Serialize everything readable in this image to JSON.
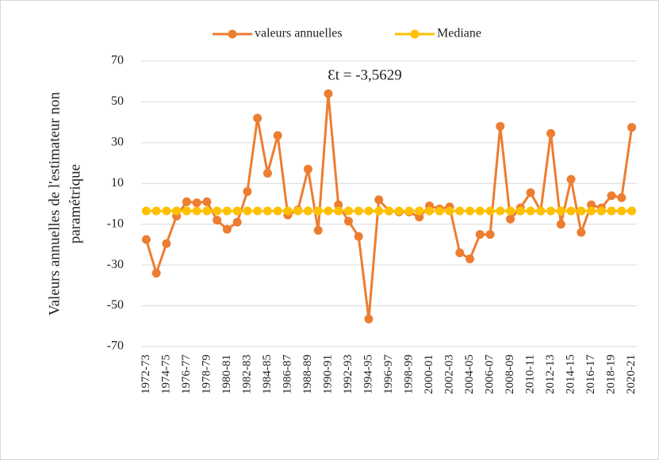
{
  "chart_data": {
    "type": "line",
    "ylabel": [
      "Valeurs annuelles de l'estimateur non",
      "paramétrique"
    ],
    "annotation": "Ɛt = -3,5629",
    "categories": [
      "1972-73",
      null,
      "1974-75",
      null,
      "1976-77",
      null,
      "1978-79",
      null,
      "1980-81",
      null,
      "1982-83",
      null,
      "1984-85",
      null,
      "1986-87",
      null,
      "1988-89",
      null,
      "1990-91",
      null,
      "1992-93",
      null,
      "1994-95",
      null,
      "1996-97",
      null,
      "1998-99",
      null,
      "2000-01",
      null,
      "2002-03",
      null,
      "2004-05",
      null,
      "2006-07",
      null,
      "2008-09",
      null,
      "2010-11",
      null,
      "2012-13",
      null,
      "2014-15",
      null,
      "2016-17",
      null,
      "2018-19",
      null,
      "2020-21"
    ],
    "series": [
      {
        "name": "valeurs annuelles",
        "color": "#ED7D31",
        "values": [
          -17.5,
          -34,
          -19.5,
          -6,
          1,
          0.5,
          1,
          -8,
          -12.5,
          -9,
          6,
          42,
          15,
          33.5,
          -5.5,
          -3,
          17,
          -13,
          54,
          -0.5,
          -8.5,
          -16,
          -56.5,
          2,
          -3.5,
          -4,
          -4,
          -6.5,
          -1,
          -2.5,
          -1.5,
          -24,
          -27,
          -15,
          -15,
          38,
          -7.5,
          -2,
          5.5,
          -3.5,
          34.5,
          -10,
          12,
          -14,
          -0.5,
          -2,
          4,
          3,
          37.5
        ]
      },
      {
        "name": "Mediane",
        "color": "#FFC000",
        "values": [
          -3.5,
          -3.5,
          -3.5,
          -3.5,
          -3.5,
          -3.5,
          -3.5,
          -3.5,
          -3.5,
          -3.5,
          -3.5,
          -3.5,
          -3.5,
          -3.5,
          -3.5,
          -3.5,
          -3.5,
          -3.5,
          -3.5,
          -3.5,
          -3.5,
          -3.5,
          -3.5,
          -3.5,
          -3.5,
          -3.5,
          -3.5,
          -3.5,
          -3.5,
          -3.5,
          -3.5,
          -3.5,
          -3.5,
          -3.5,
          -3.5,
          -3.5,
          -3.5,
          -3.5,
          -3.5,
          -3.5,
          -3.5,
          -3.5,
          -3.5,
          -3.5,
          -3.5,
          -3.5,
          -3.5,
          -3.5,
          -3.5
        ]
      }
    ],
    "ylim": [
      -70,
      70
    ],
    "yticks": [
      -70,
      -50,
      -30,
      -10,
      10,
      30,
      50,
      70
    ],
    "grid": true,
    "legend": "top"
  }
}
